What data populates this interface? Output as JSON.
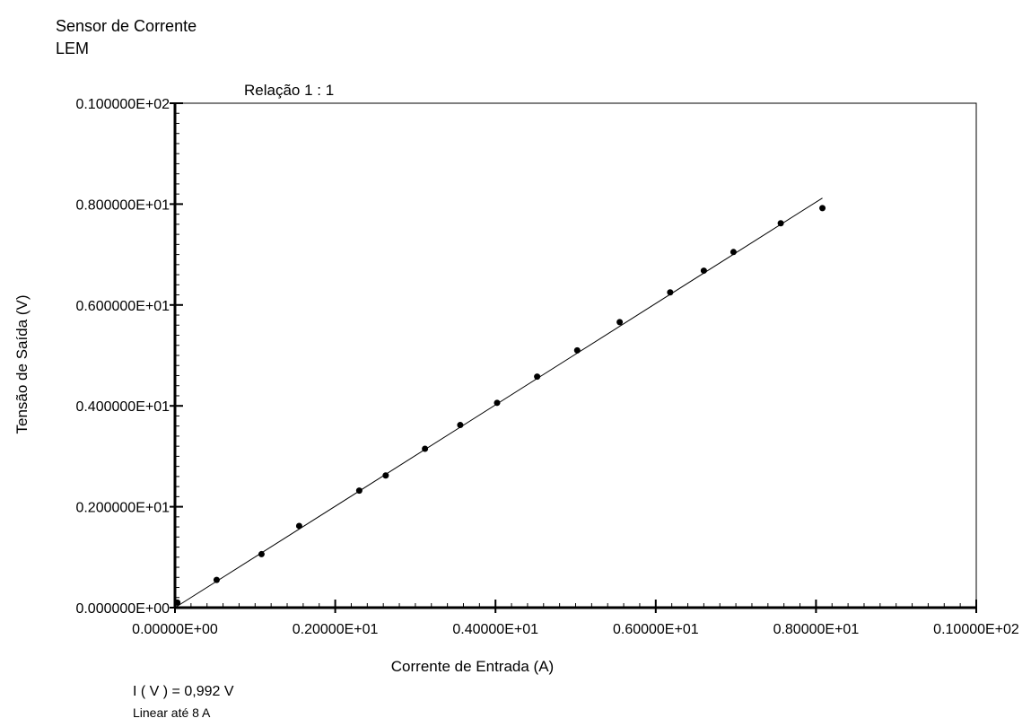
{
  "header": {
    "title_line1": "Sensor de Corrente",
    "title_line2": "LEM"
  },
  "notes": {
    "line1": "I ( V ) = 0,992 V",
    "line2": "Linear até 8 A"
  },
  "chart_data": {
    "type": "scatter",
    "title": "Relação 1 : 1",
    "xlabel": "Corrente de Entrada (A)",
    "ylabel": "Tensão de Saída (V)",
    "xlim": [
      0,
      10
    ],
    "ylim": [
      0,
      10
    ],
    "x_tick_values": [
      0,
      2,
      4,
      6,
      8,
      10
    ],
    "x_tick_labels": [
      "0.00000E+00",
      "0.20000E+01",
      "0.40000E+01",
      "0.60000E+01",
      "0.80000E+01",
      "0.10000E+02"
    ],
    "y_tick_values": [
      0,
      2,
      4,
      6,
      8,
      10
    ],
    "y_tick_labels": [
      "0.000000E+00",
      "0.200000E+01",
      "0.400000E+01",
      "0.600000E+01",
      "0.800000E+01",
      "0.100000E+02"
    ],
    "grid": false,
    "series": [
      {
        "kind": "points",
        "x": [
          0.03,
          0.52,
          1.08,
          1.55,
          2.3,
          2.63,
          3.12,
          3.56,
          4.02,
          4.52,
          5.02,
          5.55,
          6.18,
          6.6,
          6.97,
          7.56,
          8.08
        ],
        "y": [
          0.1,
          0.55,
          1.06,
          1.62,
          2.32,
          2.62,
          3.15,
          3.62,
          4.06,
          4.58,
          5.1,
          5.66,
          6.25,
          6.68,
          7.05,
          7.62,
          7.92
        ]
      },
      {
        "kind": "fit-line",
        "x": [
          0,
          8.08
        ],
        "y": [
          0,
          8.12
        ]
      }
    ]
  }
}
